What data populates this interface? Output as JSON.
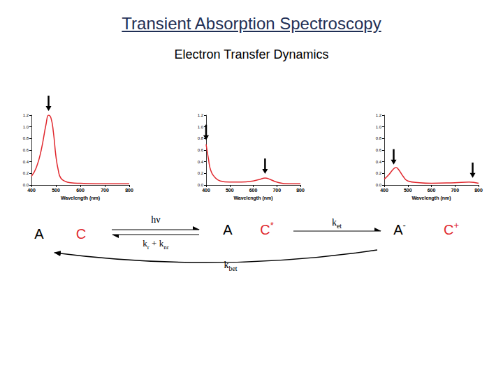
{
  "header": {
    "title": "Transient Absorption Spectroscopy",
    "subtitle": "Electron Transfer Dynamics"
  },
  "chart_data": [
    {
      "type": "line",
      "x_label": "Wavelength (nm)",
      "color": "#e0282e",
      "grid": false,
      "x": [
        400,
        420,
        440,
        460,
        470,
        480,
        490,
        500,
        510,
        520,
        540,
        560,
        600,
        700,
        800
      ],
      "values": [
        0.15,
        0.3,
        0.6,
        1.05,
        1.2,
        1.15,
        0.9,
        0.5,
        0.25,
        0.12,
        0.06,
        0.04,
        0.03,
        0.02,
        0.02
      ],
      "xlim": [
        400,
        800
      ],
      "xticks": [
        400,
        500,
        600,
        700,
        800
      ],
      "ylim": [
        0,
        1.2
      ],
      "yticks": [
        {
          "value": 0,
          "label": "0.0"
        },
        0.2,
        0.4,
        0.6,
        0.8,
        {
          "value": 1,
          "label": "1.0"
        },
        1.2
      ],
      "arrows": [
        470
      ]
    },
    {
      "type": "line",
      "x_label": "Wavelength (nm)",
      "color": "#e0282e",
      "grid": false,
      "x": [
        400,
        410,
        420,
        440,
        460,
        500,
        550,
        600,
        630,
        650,
        670,
        700,
        750,
        800
      ],
      "values": [
        0.7,
        0.45,
        0.25,
        0.12,
        0.07,
        0.05,
        0.05,
        0.07,
        0.1,
        0.12,
        0.1,
        0.05,
        0.02,
        0.02
      ],
      "xlim": [
        400,
        800
      ],
      "xticks": [
        400,
        500,
        600,
        700,
        800
      ],
      "ylim": [
        0,
        1.2
      ],
      "yticks": [
        {
          "value": 0,
          "label": "0.0"
        },
        0.2,
        0.4,
        0.6,
        0.8,
        {
          "value": 1,
          "label": "1.0"
        },
        1.2
      ],
      "arrows": [
        400,
        650
      ]
    },
    {
      "type": "line",
      "x_label": "Wavelength (nm)",
      "color": "#e0282e",
      "grid": false,
      "x": [
        400,
        420,
        440,
        450,
        460,
        480,
        500,
        550,
        600,
        700,
        760,
        800
      ],
      "values": [
        0.1,
        0.18,
        0.28,
        0.3,
        0.27,
        0.15,
        0.07,
        0.04,
        0.03,
        0.04,
        0.05,
        0.03
      ],
      "xlim": [
        400,
        800
      ],
      "xticks": [
        400,
        500,
        600,
        700,
        800
      ],
      "ylim": [
        0,
        1.2
      ],
      "yticks": [
        {
          "value": 0,
          "label": "0.0"
        },
        0.2,
        0.4,
        0.6,
        0.8,
        {
          "value": 1,
          "label": "1.0"
        },
        1.2
      ],
      "arrows": [
        440,
        775
      ]
    }
  ],
  "scheme": {
    "states": [
      [
        {
          "text": "A",
          "color": "#000000"
        },
        {
          "text": "C",
          "color": "#e0282e"
        }
      ],
      [
        {
          "text": "A",
          "color": "#000000"
        },
        {
          "text": "C",
          "sup": "*",
          "color": "#e0282e"
        }
      ],
      [
        {
          "text": "A",
          "sup": "-",
          "color": "#000000"
        },
        {
          "text": "C",
          "sup": "+",
          "color": "#e0282e"
        }
      ]
    ],
    "excitation": [
      {
        "text": "hν"
      }
    ],
    "decay": [
      {
        "text": "k"
      },
      {
        "text": "r",
        "sub": true
      },
      {
        "text": " + "
      },
      {
        "text": "k"
      },
      {
        "text": "nr",
        "sub": true
      }
    ],
    "transfer": [
      {
        "text": "k"
      },
      {
        "text": "et",
        "sub": true
      }
    ],
    "back_transfer": [
      {
        "text": "k"
      },
      {
        "text": "bet",
        "sub": true
      }
    ]
  }
}
